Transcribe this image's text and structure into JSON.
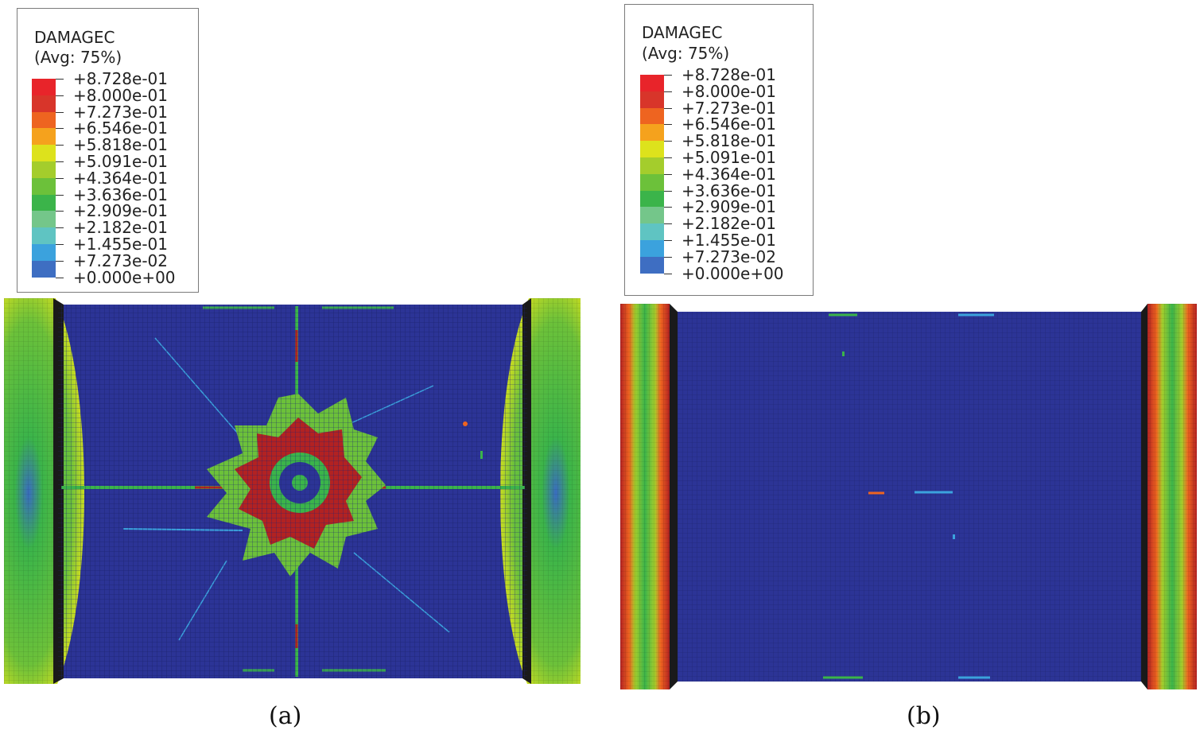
{
  "panels": [
    {
      "id": "a",
      "caption": "(a)",
      "legend": {
        "variable": "DAMAGEC",
        "averaging": "(Avg: 75%)",
        "levels": [
          "+8.728e-01",
          "+8.000e-01",
          "+7.273e-01",
          "+6.546e-01",
          "+5.818e-01",
          "+5.091e-01",
          "+4.364e-01",
          "+3.636e-01",
          "+2.909e-01",
          "+2.182e-01",
          "+1.455e-01",
          "+7.273e-02",
          "+0.000e+00"
        ]
      }
    },
    {
      "id": "b",
      "caption": "(b)",
      "legend": {
        "variable": "DAMAGEC",
        "averaging": "(Avg: 75%)",
        "levels": [
          "+8.728e-01",
          "+8.000e-01",
          "+7.273e-01",
          "+6.546e-01",
          "+5.818e-01",
          "+5.091e-01",
          "+4.364e-01",
          "+3.636e-01",
          "+2.909e-01",
          "+2.182e-01",
          "+1.455e-01",
          "+7.273e-02",
          "+0.000e+00"
        ]
      }
    }
  ],
  "colors": {
    "bands_top_to_bottom": [
      "#e8242a",
      "#d8352a",
      "#ee6420",
      "#f5a21d",
      "#dde21c",
      "#a4cd2c",
      "#6cc13a",
      "#3bb44a",
      "#74c68a",
      "#5fc4c2",
      "#3ba2dd",
      "#3e6ec2",
      "#2e42a4"
    ],
    "background_undamaged": "#2c3496",
    "high_damage": "#b22222",
    "support": "#1a1a1a"
  }
}
